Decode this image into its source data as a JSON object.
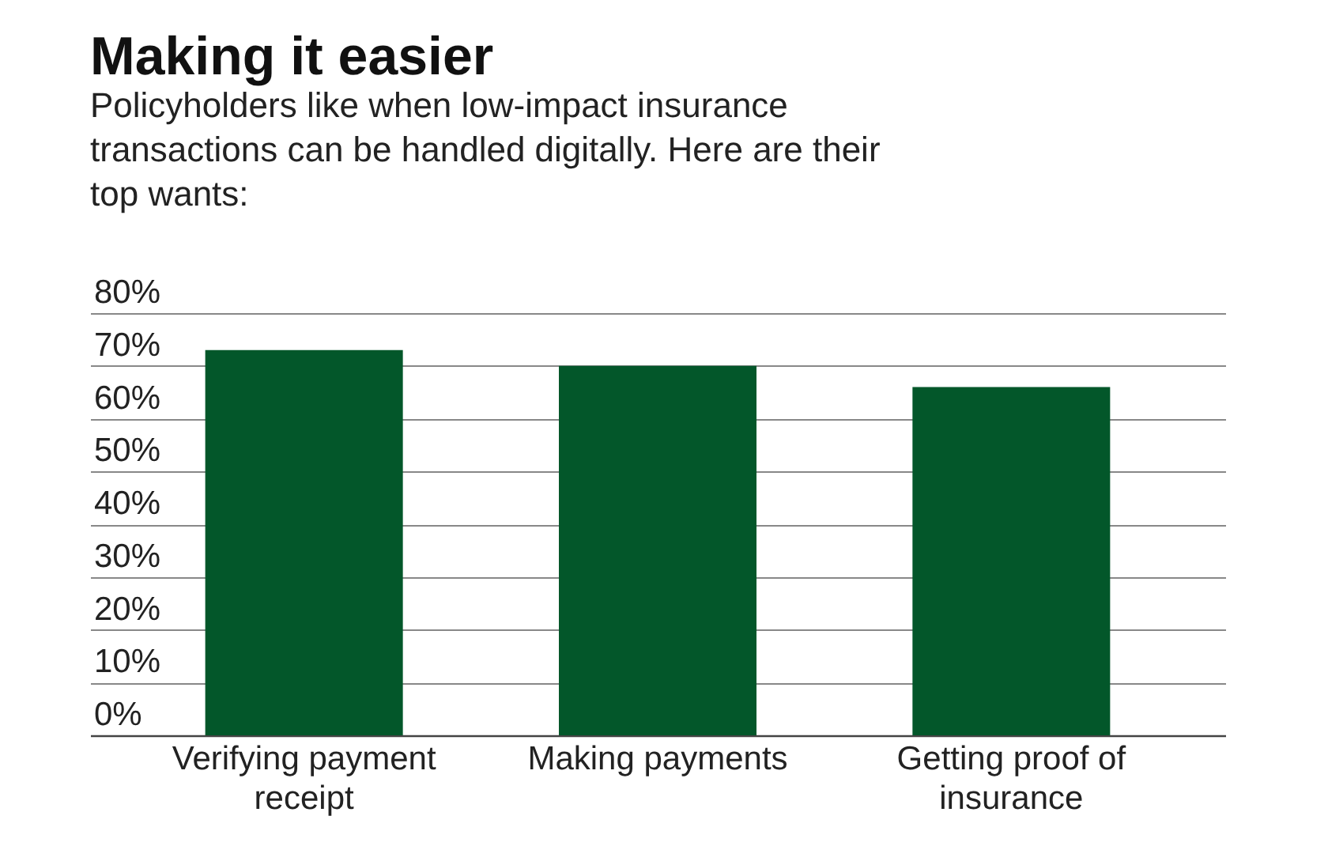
{
  "chart_data": {
    "type": "bar",
    "title": "Making it easier",
    "subtitle": "Policyholders like when low-impact insurance transactions can be handled digitally. Here are their top wants:",
    "categories": [
      "Verifying payment receipt",
      "Making payments",
      "Getting proof of insurance"
    ],
    "values": [
      73,
      70,
      66
    ],
    "color": "#03572a",
    "ylim": [
      0,
      80
    ],
    "yticks": [
      {
        "value": 0,
        "label": "0%"
      },
      {
        "value": 10,
        "label": "10%"
      },
      {
        "value": 20,
        "label": "20%"
      },
      {
        "value": 30,
        "label": "30%"
      },
      {
        "value": 40,
        "label": "40%"
      },
      {
        "value": 50,
        "label": "50%"
      },
      {
        "value": 60,
        "label": "60%"
      },
      {
        "value": 70,
        "label": "70%"
      },
      {
        "value": 80,
        "label": "80%"
      }
    ],
    "grid": "y"
  }
}
